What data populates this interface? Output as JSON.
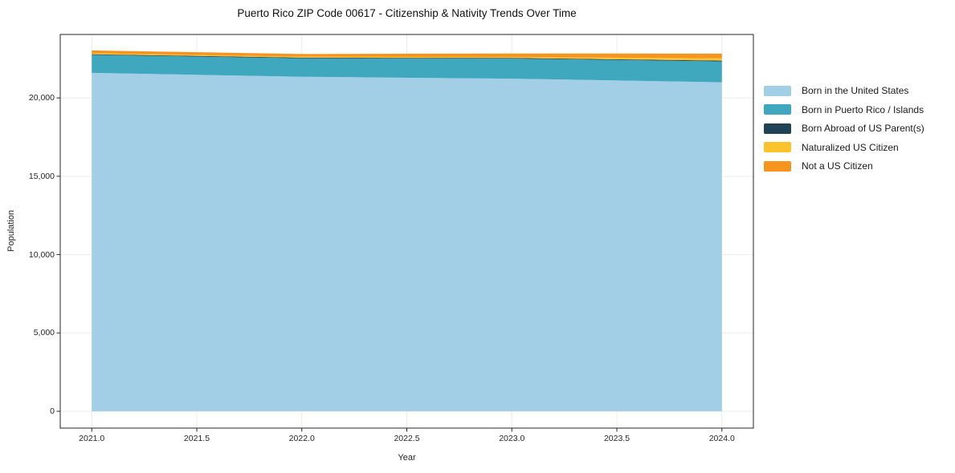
{
  "title": "Puerto Rico ZIP Code 00617 - Citizenship & Nativity Trends Over Time",
  "chart_data": {
    "type": "area",
    "stacked": true,
    "title": "Puerto Rico ZIP Code 00617 - Citizenship & Nativity Trends Over Time",
    "xlabel": "Year",
    "ylabel": "Population",
    "x": [
      2021,
      2022,
      2023,
      2024
    ],
    "series": [
      {
        "name": "Born in the United States",
        "color": "#a3cfe6",
        "values": [
          21600,
          21350,
          21230,
          21000
        ]
      },
      {
        "name": "Born in Puerto Rico / Islands",
        "color": "#3fa8bf",
        "values": [
          1150,
          1180,
          1280,
          1330
        ]
      },
      {
        "name": "Born Abroad of US Parent(s)",
        "color": "#1f4254",
        "values": [
          40,
          40,
          40,
          50
        ]
      },
      {
        "name": "Naturalized US Citizen",
        "color": "#fbc32c",
        "values": [
          60,
          60,
          60,
          150
        ]
      },
      {
        "name": "Not a US Citizen",
        "color": "#f5941e",
        "values": [
          180,
          175,
          225,
          300
        ]
      }
    ],
    "x_tick_labels": [
      "2021.0",
      "2021.5",
      "2022.0",
      "2022.5",
      "2023.0",
      "2023.5",
      "2024.0"
    ],
    "x_tick_values": [
      2021,
      2021.5,
      2022,
      2022.5,
      2023,
      2023.5,
      2024
    ],
    "y_tick_labels": [
      "0",
      "5,000",
      "10,000",
      "15,000",
      "20,000"
    ],
    "y_tick_values": [
      0,
      5000,
      10000,
      15000,
      20000
    ],
    "xlim": [
      2020.85,
      2024.15
    ],
    "ylim": [
      -1075,
      24050
    ],
    "grid": true,
    "grid_color": "#ececec",
    "spine_color": "#262626",
    "legend_position": "right-outside"
  }
}
